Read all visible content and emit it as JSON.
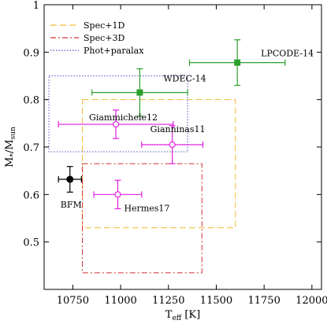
{
  "chart_data": {
    "type": "scatter",
    "xlim": [
      10600,
      12050
    ],
    "ylim": [
      0.4,
      1.0
    ],
    "x_ticks": [
      10750,
      11000,
      11250,
      11500,
      11750,
      12000
    ],
    "y_ticks": [
      0.5,
      0.6,
      0.7,
      0.8,
      0.9,
      1.0
    ],
    "x_tick_labels": [
      "10750",
      "11000",
      "11250",
      "11500",
      "11750",
      "12000"
    ],
    "y_tick_labels": [
      "0.5",
      "0.6",
      "0.7",
      "0.8",
      "0.9",
      "1"
    ],
    "xlabel": {
      "main": "T",
      "sub": "eff",
      "tail": " [K]"
    },
    "ylabel": {
      "main": "M",
      "sub": "*",
      "mid": "/M",
      "sub2": "sun"
    },
    "grid": false,
    "legend_position": "top-left",
    "legend": [
      {
        "label": "Spec+1D",
        "color": "#f5b935",
        "dash": "8,4"
      },
      {
        "label": "Spec+3D",
        "color": "#d03030",
        "dash": "7,3,2,3"
      },
      {
        "label": "Phot+paralax",
        "color": "#5050c8",
        "dash": "1.5,2"
      }
    ],
    "boxes": [
      {
        "name": "Spec+1D",
        "x0": 10800,
        "x1": 11600,
        "y0": 0.53,
        "y1": 0.8,
        "color": "#f5b935",
        "dash": "8,4"
      },
      {
        "name": "Spec+3D",
        "x0": 10800,
        "x1": 11425,
        "y0": 0.435,
        "y1": 0.665,
        "color": "#d03030",
        "dash": "7,3,2,3"
      },
      {
        "name": "Phot+paralax",
        "x0": 10625,
        "x1": 11350,
        "y0": 0.69,
        "y1": 0.85,
        "color": "#5050c8",
        "dash": "1.5,2"
      }
    ],
    "points": [
      {
        "label": "LPCODE-14",
        "x": 11610,
        "y": 0.878,
        "xerr": 250,
        "yerr": 0.048,
        "color": "#2ca02c",
        "marker": "square-filled",
        "label_dx": 30,
        "label_dy": -8
      },
      {
        "label": "WDEC-14",
        "x": 11100,
        "y": 0.815,
        "xerr": 250,
        "yerr": 0.05,
        "color": "#2ca02c",
        "marker": "square-filled",
        "label_dx": 30,
        "label_dy": -14
      },
      {
        "label": "Giammichele12",
        "x": 10975,
        "y": 0.748,
        "xerr": 300,
        "yerr": 0.03,
        "color": "#e020e0",
        "marker": "circle-open",
        "label_dx": -34,
        "label_dy": -5
      },
      {
        "label": "Gianninas11",
        "x": 11270,
        "y": 0.705,
        "xerr": 160,
        "yerr": 0.04,
        "color": "#e020e0",
        "marker": "circle-open",
        "label_dx": -28,
        "label_dy": -16
      },
      {
        "label": "Hermes17",
        "x": 10985,
        "y": 0.6,
        "xerr": 125,
        "yerr": 0.03,
        "color": "#e020e0",
        "marker": "circle-open",
        "label_dx": 8,
        "label_dy": 21
      },
      {
        "label": "BFM",
        "x": 10735,
        "y": 0.632,
        "xerr": 60,
        "yerr": 0.027,
        "color": "#000000",
        "marker": "circle-filled",
        "label_dx": -12,
        "label_dy": 36
      }
    ]
  }
}
